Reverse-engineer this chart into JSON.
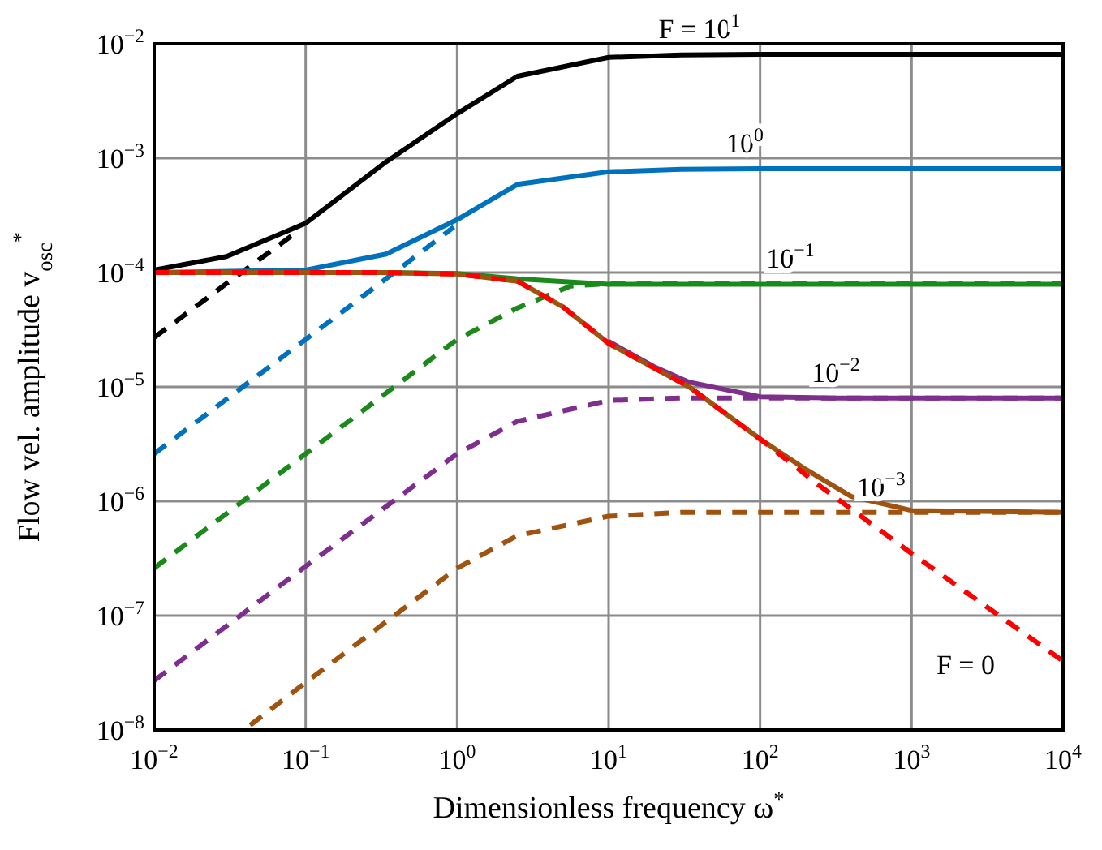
{
  "chart_data": {
    "type": "line",
    "xlabel": "Dimensionless frequency ω$^{*}$",
    "ylabel": "Flow vel. amplitude v$_{osc}$$^{*}$",
    "log": "xy",
    "grid": true,
    "xlim": [
      0.01,
      10000
    ],
    "xticks": [
      {
        "value": 0.01,
        "label": "10$^{−2}$"
      },
      {
        "value": 0.1,
        "label": "10$^{−1}$"
      },
      {
        "value": 1,
        "label": "10$^{0}$"
      },
      {
        "value": 10,
        "label": "10$^{1}$"
      },
      {
        "value": 100,
        "label": "10$^{2}$"
      },
      {
        "value": 1000,
        "label": "10$^{3}$"
      },
      {
        "value": 10000,
        "label": "10$^{4}$"
      }
    ],
    "ylim": [
      1e-08,
      0.01
    ],
    "yticks": [
      {
        "value": 1e-08,
        "label": "10$^{−8}$"
      },
      {
        "value": 1e-07,
        "label": "10$^{−7}$"
      },
      {
        "value": 1e-06,
        "label": "10$^{−6}$"
      },
      {
        "value": 1e-05,
        "label": "10$^{−5}$"
      },
      {
        "value": 0.0001,
        "label": "10$^{−4}$"
      },
      {
        "value": 0.001,
        "label": "10$^{−3}$"
      },
      {
        "value": 0.01,
        "label": "10$^{−2}$"
      }
    ],
    "series": [
      {
        "color": "#000000",
        "line_style": "dashed",
        "x": [
          0.01,
          0.03,
          0.089
        ],
        "values": [
          2.7e-05,
          8e-05,
          0.00023
        ]
      },
      {
        "color": "#0072bd",
        "line_style": "dashed",
        "x": [
          0.01,
          0.1,
          0.5,
          0.95
        ],
        "values": [
          2.6e-06,
          2.6e-05,
          0.00013,
          0.00025
        ]
      },
      {
        "color": "#1a8a1a",
        "line_style": "dashed",
        "x": [
          0.01,
          0.1,
          1,
          2.5,
          5.6,
          10,
          10000
        ],
        "values": [
          2.6e-07,
          2.6e-06,
          2.6e-05,
          4.9e-05,
          7.6e-05,
          8e-05,
          8e-05
        ]
      },
      {
        "color": "#7e2f8e",
        "line_style": "dashed",
        "x": [
          0.01,
          0.1,
          1,
          2.5,
          10,
          30,
          100,
          10000
        ],
        "values": [
          2.7e-08,
          2.7e-07,
          2.6e-06,
          5e-06,
          7.6e-06,
          8e-06,
          8e-06,
          8e-06
        ]
      },
      {
        "color": "#a0520f",
        "line_style": "dashed",
        "x": [
          0.043,
          0.1,
          1,
          2.5,
          10,
          30,
          10000
        ],
        "values": [
          1.1e-08,
          2.6e-08,
          2.6e-07,
          5e-07,
          7.4e-07,
          8e-07,
          8e-07
        ]
      },
      {
        "name": "F = 10$^{1}$",
        "color": "#000000",
        "x": [
          0.01,
          0.03,
          0.1,
          0.34,
          1,
          2.5,
          10,
          30,
          100,
          10000
        ],
        "values": [
          0.000105,
          0.000138,
          0.00027,
          0.00093,
          0.00245,
          0.0052,
          0.0076,
          0.008,
          0.0081,
          0.0081
        ]
      },
      {
        "name": "10$^{0}$",
        "color": "#0072bd",
        "x": [
          0.01,
          0.1,
          0.34,
          1,
          2.5,
          10,
          30,
          100,
          10000
        ],
        "values": [
          0.0001,
          0.000105,
          0.000145,
          0.00029,
          0.00059,
          0.00076,
          0.0008,
          0.00081,
          0.00081
        ]
      },
      {
        "name": "10$^{−1}$",
        "color": "#1a8a1a",
        "x": [
          0.01,
          0.3,
          1,
          2.5,
          10,
          30,
          10000
        ],
        "values": [
          0.0001,
          0.0001,
          9.8e-05,
          8.8e-05,
          7.9e-05,
          7.9e-05,
          7.9e-05
        ]
      },
      {
        "name": "10$^{−2}$",
        "color": "#7e2f8e",
        "x": [
          10,
          20,
          34,
          100,
          300,
          10000
        ],
        "values": [
          2.5e-05,
          1.5e-05,
          1.1e-05,
          8.2e-06,
          8e-06,
          8e-06
        ]
      },
      {
        "name": "10$^{−3}$",
        "color": "#a0520f",
        "x": [
          0.01,
          0.3,
          1,
          2.5,
          5,
          10,
          34,
          100,
          200,
          400,
          1000,
          10000
        ],
        "values": [
          0.0001,
          0.0001,
          9.7e-05,
          8.4e-05,
          5e-05,
          2.4e-05,
          1e-05,
          3.5e-06,
          1.9e-06,
          1.1e-06,
          8.3e-07,
          8e-07
        ]
      },
      {
        "name": "F = 0",
        "color": "#ff0000",
        "line_style": "dashed",
        "x": [
          0.01,
          0.3,
          1,
          2.5,
          5,
          10,
          34,
          100,
          250,
          1000,
          10000
        ],
        "values": [
          0.0001,
          0.0001,
          9.7e-05,
          8.4e-05,
          5e-05,
          2.4e-05,
          1e-05,
          3.5e-06,
          1.35e-06,
          3.5e-07,
          4e-08
        ]
      }
    ]
  }
}
